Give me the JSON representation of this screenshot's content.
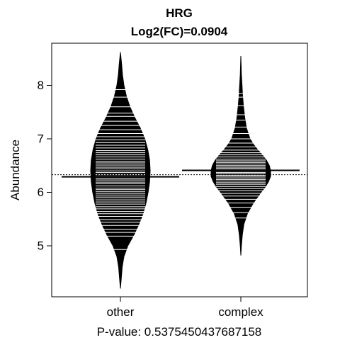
{
  "chart_data": {
    "type": "beanplot",
    "title": "HRG",
    "subtitle": "Log2(FC)=0.0904",
    "xlabel": "P-value: 0.5375450437687158",
    "ylabel": "Abundance",
    "categories": [
      "other",
      "complex"
    ],
    "yticks": [
      5,
      6,
      7,
      8
    ],
    "ylim": [
      4.1,
      8.7
    ],
    "overall_mean": 6.33,
    "series": [
      {
        "category": "other",
        "mean": 6.29,
        "min": 4.2,
        "max": 8.62,
        "density": [
          [
            4.2,
            0.0
          ],
          [
            4.4,
            0.03
          ],
          [
            4.6,
            0.06
          ],
          [
            4.8,
            0.12
          ],
          [
            5.0,
            0.25
          ],
          [
            5.2,
            0.45
          ],
          [
            5.4,
            0.62
          ],
          [
            5.6,
            0.76
          ],
          [
            5.8,
            0.86
          ],
          [
            6.0,
            0.93
          ],
          [
            6.2,
            0.98
          ],
          [
            6.4,
            1.0
          ],
          [
            6.6,
            0.98
          ],
          [
            6.8,
            0.92
          ],
          [
            7.0,
            0.82
          ],
          [
            7.2,
            0.67
          ],
          [
            7.4,
            0.48
          ],
          [
            7.6,
            0.32
          ],
          [
            7.8,
            0.2
          ],
          [
            8.0,
            0.12
          ],
          [
            8.2,
            0.07
          ],
          [
            8.4,
            0.04
          ],
          [
            8.62,
            0.0
          ]
        ],
        "observations": [
          4.93,
          5.18,
          5.25,
          5.31,
          5.38,
          5.44,
          5.49,
          5.55,
          5.6,
          5.64,
          5.69,
          5.73,
          5.78,
          5.82,
          5.86,
          5.9,
          5.93,
          5.97,
          6.01,
          6.05,
          6.08,
          6.12,
          6.16,
          6.19,
          6.23,
          6.26,
          6.3,
          6.33,
          6.37,
          6.4,
          6.44,
          6.47,
          6.51,
          6.55,
          6.58,
          6.62,
          6.66,
          6.7,
          6.74,
          6.78,
          6.83,
          6.88,
          6.93,
          6.98,
          7.04,
          7.1,
          7.17,
          7.25,
          7.33,
          7.42,
          7.48,
          7.6,
          7.78,
          7.92
        ]
      },
      {
        "category": "complex",
        "mean": 6.41,
        "min": 4.82,
        "max": 8.55,
        "density": [
          [
            4.82,
            0.0
          ],
          [
            5.0,
            0.02
          ],
          [
            5.2,
            0.05
          ],
          [
            5.4,
            0.1
          ],
          [
            5.6,
            0.22
          ],
          [
            5.8,
            0.42
          ],
          [
            6.0,
            0.68
          ],
          [
            6.1,
            0.82
          ],
          [
            6.2,
            0.93
          ],
          [
            6.3,
            1.0
          ],
          [
            6.4,
            1.0
          ],
          [
            6.5,
            0.96
          ],
          [
            6.6,
            0.86
          ],
          [
            6.7,
            0.72
          ],
          [
            6.8,
            0.56
          ],
          [
            6.9,
            0.42
          ],
          [
            7.0,
            0.31
          ],
          [
            7.2,
            0.19
          ],
          [
            7.4,
            0.13
          ],
          [
            7.6,
            0.09
          ],
          [
            7.8,
            0.06
          ],
          [
            8.0,
            0.04
          ],
          [
            8.2,
            0.02
          ],
          [
            8.55,
            0.0
          ]
        ],
        "observations": [
          5.52,
          5.62,
          5.72,
          5.8,
          5.87,
          5.93,
          5.98,
          6.03,
          6.07,
          6.11,
          6.15,
          6.18,
          6.21,
          6.24,
          6.27,
          6.3,
          6.32,
          6.35,
          6.37,
          6.4,
          6.42,
          6.45,
          6.47,
          6.5,
          6.53,
          6.56,
          6.59,
          6.62,
          6.66,
          6.7,
          6.74,
          6.79,
          6.85,
          6.92,
          7.0,
          7.1,
          7.22,
          7.35,
          7.45,
          7.62,
          7.78,
          7.85
        ]
      }
    ]
  }
}
